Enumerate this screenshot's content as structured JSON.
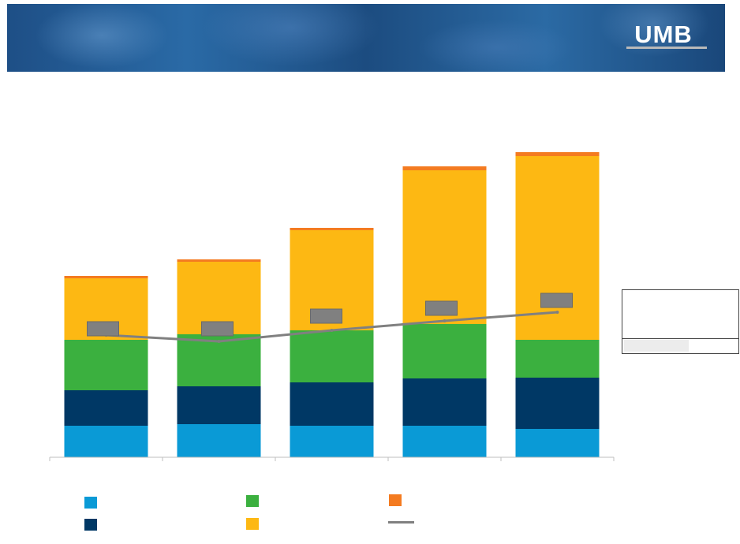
{
  "logo": {
    "text": "UMB"
  },
  "colors": {
    "light_blue": "#0a9ad6",
    "navy": "#003865",
    "green": "#3bb03f",
    "gold": "#fdb813",
    "orange": "#f47b20",
    "line": "#808080",
    "label_box": "#808080"
  },
  "chart_data": {
    "type": "bar",
    "stacked": true,
    "categories": [
      "",
      "",
      "",
      "",
      ""
    ],
    "series": [
      {
        "color": "#0a9ad6",
        "values": [
          40,
          42,
          40,
          40,
          36
        ]
      },
      {
        "color": "#003865",
        "values": [
          45,
          48,
          55,
          60,
          65
        ]
      },
      {
        "color": "#3bb03f",
        "values": [
          64,
          66,
          66,
          69,
          48
        ]
      },
      {
        "color": "#fdb813",
        "values": [
          78,
          92,
          127,
          195,
          233
        ]
      },
      {
        "color": "#f47b20",
        "values": [
          3,
          3,
          3,
          5,
          5
        ]
      }
    ],
    "line": {
      "color": "#808080",
      "values": [
        155,
        147,
        161,
        173,
        184
      ]
    },
    "ylim": [
      0,
      400
    ],
    "grid": false,
    "legend_position": "bottom"
  }
}
